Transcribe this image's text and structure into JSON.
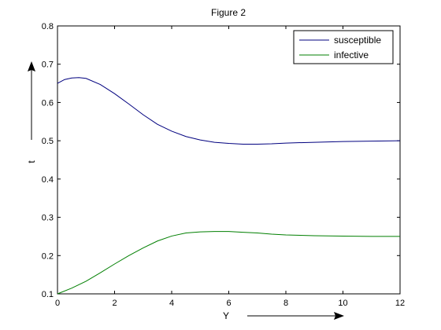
{
  "chart_data": {
    "type": "line",
    "title": "Figure 2",
    "xlabel": "Y",
    "ylabel": "t",
    "xlim": [
      0,
      12
    ],
    "ylim": [
      0.1,
      0.8
    ],
    "xticks": [
      "0",
      "2",
      "4",
      "6",
      "8",
      "10",
      "12"
    ],
    "yticks": [
      "0.1",
      "0.2",
      "0.3",
      "0.4",
      "0.5",
      "0.6",
      "0.7",
      "0.8"
    ],
    "grid": false,
    "legend_position": "top-right",
    "series": [
      {
        "name": "susceptible",
        "color": "#00007f",
        "x": [
          0,
          0.25,
          0.5,
          0.75,
          1,
          1.5,
          2,
          2.5,
          3,
          3.5,
          4,
          4.5,
          5,
          5.5,
          6,
          6.5,
          7,
          7.5,
          8,
          9,
          10,
          11,
          12
        ],
        "y": [
          0.65,
          0.66,
          0.664,
          0.665,
          0.663,
          0.647,
          0.623,
          0.596,
          0.568,
          0.543,
          0.525,
          0.511,
          0.502,
          0.496,
          0.493,
          0.491,
          0.491,
          0.492,
          0.494,
          0.496,
          0.498,
          0.499,
          0.5
        ]
      },
      {
        "name": "infective",
        "color": "#007f00",
        "x": [
          0,
          0.5,
          1,
          1.5,
          2,
          2.5,
          3,
          3.5,
          4,
          4.5,
          5,
          5.5,
          6,
          6.5,
          7,
          7.5,
          8,
          9,
          10,
          11,
          12
        ],
        "y": [
          0.1,
          0.115,
          0.133,
          0.155,
          0.178,
          0.2,
          0.22,
          0.238,
          0.251,
          0.259,
          0.262,
          0.263,
          0.263,
          0.261,
          0.259,
          0.256,
          0.254,
          0.252,
          0.251,
          0.25,
          0.25
        ]
      }
    ]
  }
}
